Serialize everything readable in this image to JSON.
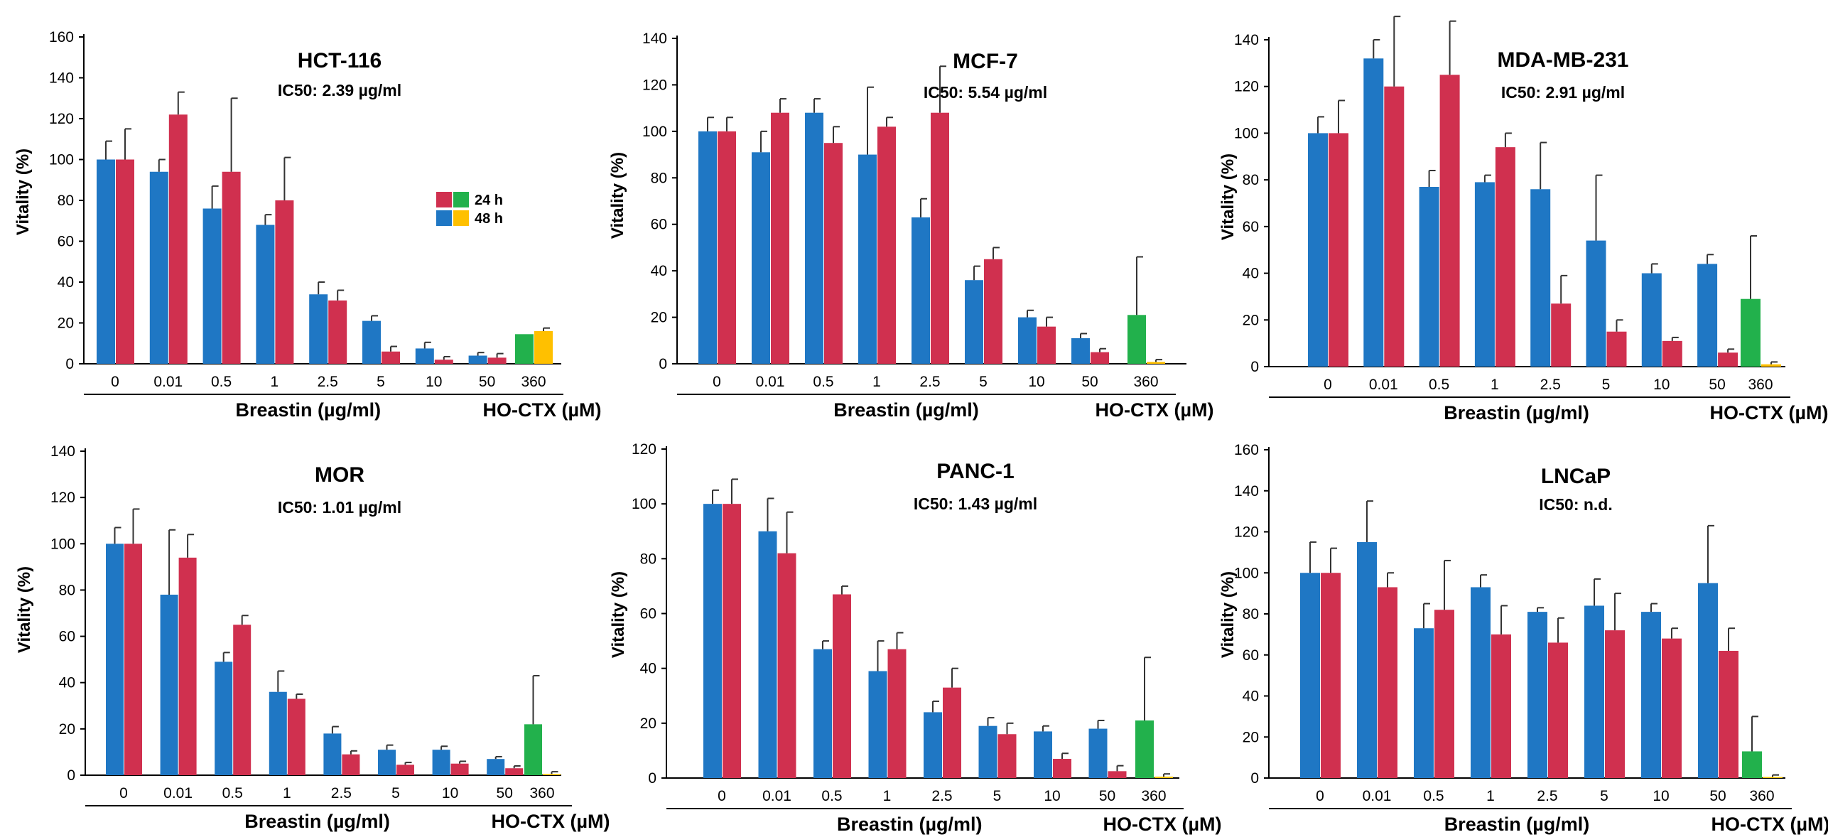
{
  "figure": {
    "legend": {
      "entries": [
        {
          "label": "24 h",
          "colors": [
            "#d0304f",
            "#22b14c"
          ]
        },
        {
          "label": "48 h",
          "colors": [
            "#1f77c4",
            "#ffc000"
          ]
        }
      ]
    },
    "colors": {
      "breastin_24h": "#d0304f",
      "breastin_48h": "#1f77c4",
      "ho_ctx_24h": "#22b14c",
      "ho_ctx_48h": "#ffc000",
      "error_bar": "#333333",
      "axis": "#000000"
    }
  },
  "chart_data": [
    {
      "type": "bar",
      "title": "HCT-116",
      "subtitle": "IC50: 2.39 µg/ml",
      "ylabel": "Vitality (%)",
      "xlabel": "Breastin (µg/ml)",
      "control_label": "HO-CTX (µM)",
      "categories": [
        "0",
        "0.01",
        "0.5",
        "1",
        "2.5",
        "5",
        "10",
        "50"
      ],
      "control_category": "360",
      "ylim": [
        0,
        160
      ],
      "yticks": [
        0,
        20,
        40,
        60,
        80,
        100,
        120,
        140,
        160
      ],
      "legend": true,
      "series": [
        {
          "name": "48 h",
          "values": [
            100,
            94,
            76,
            68,
            34,
            21,
            7.5,
            4
          ],
          "errors": [
            9,
            6,
            11,
            5,
            6,
            2.5,
            3,
            1.5
          ]
        },
        {
          "name": "24 h",
          "values": [
            100,
            122,
            94,
            80,
            31,
            6,
            2,
            3
          ],
          "errors": [
            15,
            11,
            36,
            21,
            5,
            2.5,
            1.5,
            2
          ]
        }
      ],
      "control": {
        "h24": 14.5,
        "h24_err": 0,
        "h48": 16,
        "h48_err": 1.5
      }
    },
    {
      "type": "bar",
      "title": "MCF-7",
      "subtitle": "IC50: 5.54 µg/ml",
      "ylabel": "Vitality (%)",
      "xlabel": "Breastin (µg/ml)",
      "control_label": "HO-CTX (µM)",
      "categories": [
        "0",
        "0.01",
        "0.5",
        "1",
        "2.5",
        "5",
        "10",
        "50"
      ],
      "control_category": "360",
      "ylim": [
        0,
        140
      ],
      "yticks": [
        0,
        20,
        40,
        60,
        80,
        100,
        120,
        140
      ],
      "legend": false,
      "series": [
        {
          "name": "48 h",
          "values": [
            100,
            91,
            108,
            90,
            63,
            36,
            20,
            11
          ],
          "errors": [
            6,
            9,
            6,
            29,
            8,
            6,
            3,
            2
          ]
        },
        {
          "name": "24 h",
          "values": [
            100,
            108,
            95,
            102,
            108,
            45,
            16,
            5
          ],
          "errors": [
            6,
            6,
            7,
            4,
            20,
            5,
            4,
            1.5
          ]
        }
      ],
      "control": {
        "h24": 21,
        "h24_err": 25,
        "h48": 0.8,
        "h48_err": 1
      }
    },
    {
      "type": "bar",
      "title": "MDA-MB-231",
      "subtitle": "IC50: 2.91 µg/ml",
      "ylabel": "Vitality (%)",
      "xlabel": "Breastin (µg/ml)",
      "control_label": "HO-CTX (µM)",
      "categories": [
        "0",
        "0.01",
        "0.5",
        "1",
        "2.5",
        "5",
        "10",
        "50"
      ],
      "control_category": "360",
      "ylim": [
        0,
        140
      ],
      "yticks": [
        0,
        20,
        40,
        60,
        80,
        100,
        120,
        140
      ],
      "legend": false,
      "series": [
        {
          "name": "48 h",
          "values": [
            100,
            132,
            77,
            79,
            76,
            54,
            40,
            44
          ],
          "errors": [
            7,
            8,
            7,
            3,
            20,
            28,
            4,
            4
          ]
        },
        {
          "name": "24 h",
          "values": [
            100,
            120,
            125,
            94,
            27,
            15,
            11,
            6
          ],
          "errors": [
            14,
            30,
            23,
            6,
            12,
            5,
            1.5,
            1.5
          ]
        }
      ],
      "control": {
        "h24": 29,
        "h24_err": 27,
        "h48": 1,
        "h48_err": 1
      }
    },
    {
      "type": "bar",
      "title": "MOR",
      "subtitle": "IC50: 1.01 µg/ml",
      "ylabel": "Vitality (%)",
      "xlabel": "Breastin (µg/ml)",
      "control_label": "HO-CTX (µM)",
      "categories": [
        "0",
        "0.01",
        "0.5",
        "1",
        "2.5",
        "5",
        "10",
        "50"
      ],
      "control_category": "360",
      "ylim": [
        0,
        140
      ],
      "yticks": [
        0,
        20,
        40,
        60,
        80,
        100,
        120,
        140
      ],
      "legend": false,
      "series": [
        {
          "name": "48 h",
          "values": [
            100,
            78,
            49,
            36,
            18,
            11,
            11,
            7
          ],
          "errors": [
            7,
            28,
            4,
            9,
            3,
            2,
            1.5,
            1
          ]
        },
        {
          "name": "24 h",
          "values": [
            100,
            94,
            65,
            33,
            9,
            4.5,
            5,
            3
          ],
          "errors": [
            15,
            10,
            4,
            2,
            1.5,
            1,
            1,
            1
          ]
        }
      ],
      "control": {
        "h24": 22,
        "h24_err": 21,
        "h48": 0.5,
        "h48_err": 1
      }
    },
    {
      "type": "bar",
      "title": "PANC-1",
      "subtitle": "IC50: 1.43 µg/ml",
      "ylabel": "Vitality (%)",
      "xlabel": "Breastin (µg/ml)",
      "control_label": "HO-CTX (µM)",
      "categories": [
        "0",
        "0.01",
        "0.5",
        "1",
        "2.5",
        "5",
        "10",
        "50"
      ],
      "control_category": "360",
      "ylim": [
        0,
        120
      ],
      "yticks": [
        0,
        20,
        40,
        60,
        80,
        100,
        120
      ],
      "legend": false,
      "series": [
        {
          "name": "48 h",
          "values": [
            100,
            90,
            47,
            39,
            24,
            19,
            17,
            18
          ],
          "errors": [
            5,
            12,
            3,
            11,
            4,
            3,
            2,
            3
          ]
        },
        {
          "name": "24 h",
          "values": [
            100,
            82,
            67,
            47,
            33,
            16,
            7,
            2.5
          ],
          "errors": [
            9,
            15,
            3,
            6,
            7,
            4,
            2,
            2
          ]
        }
      ],
      "control": {
        "h24": 21,
        "h24_err": 23,
        "h48": 0.5,
        "h48_err": 1
      }
    },
    {
      "type": "bar",
      "title": "LNCaP",
      "subtitle": "IC50: n.d.",
      "ylabel": "Vitality (%)",
      "xlabel": "Breastin (µg/ml)",
      "control_label": "HO-CTX (µM)",
      "categories": [
        "0",
        "0.01",
        "0.5",
        "1",
        "2.5",
        "5",
        "10",
        "50"
      ],
      "control_category": "360",
      "ylim": [
        0,
        160
      ],
      "yticks": [
        0,
        20,
        40,
        60,
        80,
        100,
        120,
        140,
        160
      ],
      "legend": false,
      "series": [
        {
          "name": "48 h",
          "values": [
            100,
            115,
            73,
            93,
            81,
            84,
            81,
            95
          ],
          "errors": [
            15,
            20,
            12,
            6,
            2,
            13,
            4,
            28
          ]
        },
        {
          "name": "24 h",
          "values": [
            100,
            93,
            82,
            70,
            66,
            72,
            68,
            62
          ],
          "errors": [
            12,
            7,
            24,
            14,
            12,
            18,
            5,
            11
          ]
        }
      ],
      "control": {
        "h24": 13,
        "h24_err": 17,
        "h48": 0.5,
        "h48_err": 1
      }
    }
  ]
}
